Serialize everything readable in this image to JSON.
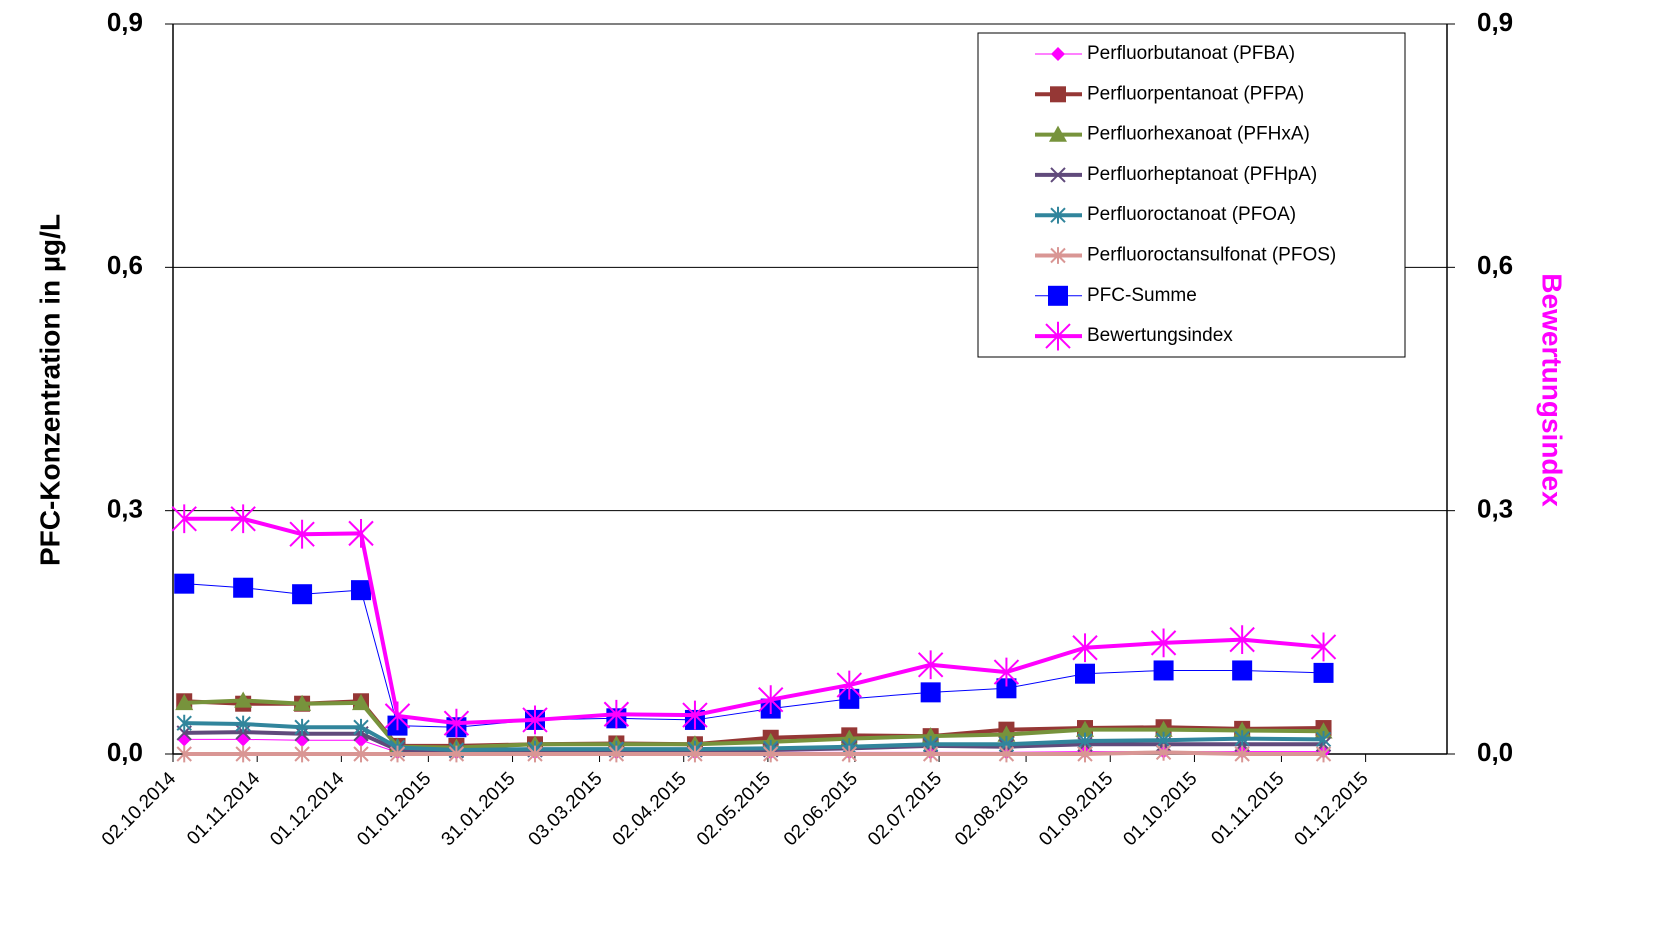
{
  "chart_data": {
    "type": "line",
    "y_label": "PFC-Konzentration in µg/L",
    "y2_label": "Bewertungsindex",
    "x": [
      "06.10.2014",
      "27.10.2014",
      "17.11.2014",
      "08.12.2014",
      "21.12.2014",
      "11.01.2015",
      "08.02.2015",
      "09.03.2015",
      "06.04.2015",
      "03.05.2015",
      "31.05.2015",
      "29.06.2015",
      "26.07.2015",
      "23.08.2015",
      "20.09.2015",
      "18.10.2015",
      "16.11.2015"
    ],
    "xlim": [
      "02.10.2014",
      "30.12.2015"
    ],
    "xticks": [
      "02.10.2014",
      "01.11.2014",
      "01.12.2014",
      "01.01.2015",
      "31.01.2015",
      "03.03.2015",
      "02.04.2015",
      "02.05.2015",
      "02.06.2015",
      "02.07.2015",
      "02.08.2015",
      "01.09.2015",
      "01.10.2015",
      "01.11.2015",
      "01.12.2015"
    ],
    "ylim": [
      0,
      0.9
    ],
    "yticks": [
      {
        "value": 0,
        "label": "0,0"
      },
      {
        "value": 0.3,
        "label": "0,3"
      },
      {
        "value": 0.6,
        "label": "0,6"
      },
      {
        "value": 0.9,
        "label": "0,9"
      }
    ],
    "y2lim": [
      0,
      0.9
    ],
    "y2ticks": [
      {
        "value": 0,
        "label": "0,0"
      },
      {
        "value": 0.3,
        "label": "0,3"
      },
      {
        "value": 0.6,
        "label": "0,6"
      },
      {
        "value": 0.9,
        "label": "0,9"
      }
    ],
    "y2_label_color": "#ff00ff",
    "grid": true,
    "legend": "upper right",
    "series": [
      {
        "name": "Perfluorbutanoat (PFBA)",
        "color": "#ff00ff",
        "marker": "diamond",
        "line_width": 1,
        "values": [
          0.018,
          0.018,
          0.017,
          0.017,
          0.002,
          0.002,
          0.002,
          0.002,
          0.002,
          0.002,
          0.002,
          0.002,
          0.002,
          0.003,
          0.003,
          0.003,
          0.003
        ]
      },
      {
        "name": "Perfluorpentanoat (PFPA)",
        "color": "#953735",
        "marker": "square",
        "line_width": 4,
        "values": [
          0.065,
          0.062,
          0.062,
          0.065,
          0.01,
          0.01,
          0.012,
          0.013,
          0.012,
          0.02,
          0.023,
          0.022,
          0.03,
          0.032,
          0.033,
          0.031,
          0.032
        ]
      },
      {
        "name": "Perfluorhexanoat (PFHxA)",
        "color": "#77933c",
        "marker": "triangle",
        "line_width": 4,
        "values": [
          0.063,
          0.066,
          0.062,
          0.063,
          0.009,
          0.008,
          0.012,
          0.012,
          0.012,
          0.015,
          0.019,
          0.022,
          0.024,
          0.03,
          0.03,
          0.029,
          0.028
        ]
      },
      {
        "name": "Perfluorheptanoat (PFHpA)",
        "color": "#604a7b",
        "marker": "x",
        "line_width": 4,
        "values": [
          0.026,
          0.027,
          0.025,
          0.025,
          0.005,
          0.004,
          0.005,
          0.005,
          0.005,
          0.005,
          0.007,
          0.01,
          0.009,
          0.012,
          0.012,
          0.012,
          0.012
        ]
      },
      {
        "name": "Perfluoroctanoat (PFOA)",
        "color": "#31859c",
        "marker": "asterisk",
        "line_width": 4,
        "values": [
          0.038,
          0.037,
          0.033,
          0.033,
          0.008,
          0.005,
          0.006,
          0.006,
          0.006,
          0.007,
          0.009,
          0.012,
          0.012,
          0.016,
          0.017,
          0.019,
          0.018
        ]
      },
      {
        "name": "Perfluoroctansulfonat (PFOS)",
        "color": "#d99694",
        "marker": "asterisk",
        "line_width": 4,
        "values": [
          0,
          0,
          0,
          0,
          0,
          0,
          0,
          0,
          0,
          0,
          0,
          0,
          0,
          0,
          0.002,
          0,
          0
        ]
      },
      {
        "name": "PFC-Summe",
        "color": "#0000ff",
        "marker": "bigsquare",
        "line_width": 1,
        "values": [
          0.21,
          0.205,
          0.197,
          0.202,
          0.035,
          0.033,
          0.042,
          0.044,
          0.042,
          0.056,
          0.068,
          0.076,
          0.081,
          0.099,
          0.103,
          0.103,
          0.1
        ]
      },
      {
        "name": "Bewertungsindex",
        "color": "#ff00ff",
        "marker": "bigasterisk",
        "line_width": 4,
        "axis": "y2",
        "values": [
          0.29,
          0.29,
          0.271,
          0.272,
          0.047,
          0.038,
          0.042,
          0.049,
          0.048,
          0.067,
          0.085,
          0.11,
          0.101,
          0.131,
          0.137,
          0.141,
          0.132
        ]
      }
    ]
  }
}
